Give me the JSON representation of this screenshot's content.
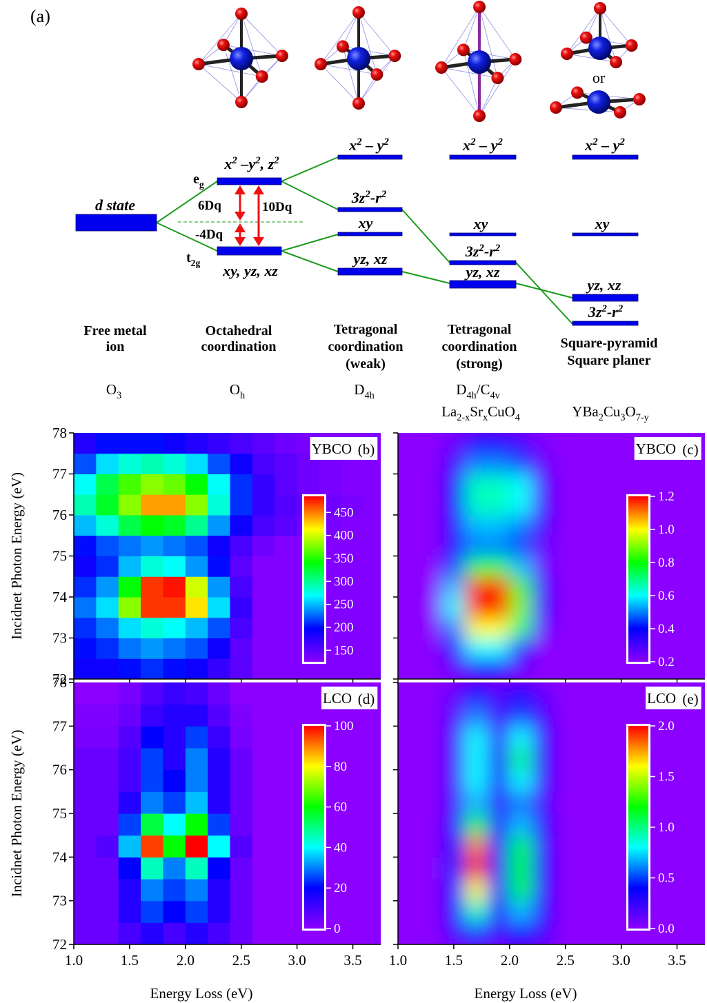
{
  "diagram": {
    "panel_label": "(a)",
    "d_state": "d state",
    "or": "or",
    "eg": [
      "e",
      "g"
    ],
    "t2g": [
      "t",
      "2g"
    ],
    "splitting": [
      "6Dq",
      "-4Dq",
      "10Dq"
    ],
    "octahedral_levels": [
      [
        "x",
        "2",
        " –y",
        "2",
        ", z",
        "2"
      ],
      [
        "xy, yz, xz"
      ]
    ],
    "weak_levels": [
      [
        "x",
        "2",
        " – y",
        "2"
      ],
      [
        "3z",
        "2",
        "-r",
        "2"
      ],
      [
        "xy"
      ],
      [
        "yz, xz"
      ]
    ],
    "strong_levels": [
      [
        "x",
        "2",
        " – y",
        "2"
      ],
      [
        "xy"
      ],
      [
        "3z",
        "2",
        "-r",
        "2"
      ],
      [
        "yz, xz"
      ]
    ],
    "square_levels": [
      [
        "x",
        "2",
        " – y",
        "2"
      ],
      [
        "xy"
      ],
      [
        "yz, xz"
      ],
      [
        "3z",
        "2",
        "-r",
        "2"
      ]
    ],
    "columns": [
      {
        "name": [
          "Free metal",
          "ion"
        ],
        "symmetry": [
          "O",
          "3"
        ]
      },
      {
        "name": [
          "Octahedral",
          "coordination"
        ],
        "symmetry": [
          "O",
          "h"
        ]
      },
      {
        "name": [
          "Tetragonal",
          "coordination",
          "(weak)"
        ],
        "symmetry": [
          "D",
          "4h"
        ]
      },
      {
        "name": [
          "Tetragonal",
          "coordination",
          "(strong)"
        ],
        "symmetry": [
          "D",
          "4h",
          "/C",
          "4v"
        ],
        "compound": [
          "La",
          "2-x",
          "Sr",
          "x",
          "CuO",
          "4"
        ]
      },
      {
        "name": [
          "Square-pyramid",
          "Square planer"
        ],
        "compound": [
          "YBa",
          "2",
          "Cu",
          "3",
          "O",
          "7-y"
        ]
      }
    ]
  },
  "chart_data": [
    {
      "type": "heatmap",
      "label": "YBCO",
      "panel": "(b)",
      "ylabel": "Incidnet Photon Energy (eV)",
      "x": [
        1.1,
        1.3,
        1.5,
        1.7,
        1.9,
        2.1,
        2.3,
        2.5,
        2.7,
        2.9,
        3.1,
        3.3,
        3.5,
        3.7
      ],
      "y": [
        72.25,
        72.75,
        73.25,
        73.75,
        74.25,
        74.75,
        75.25,
        75.75,
        76.25,
        76.75,
        77.25,
        77.75
      ],
      "z": [
        [
          190,
          190,
          200,
          210,
          200,
          190,
          170,
          150,
          130,
          130,
          130,
          130,
          130,
          130
        ],
        [
          200,
          210,
          230,
          240,
          230,
          220,
          190,
          150,
          130,
          130,
          130,
          130,
          130,
          130
        ],
        [
          210,
          230,
          260,
          280,
          270,
          250,
          220,
          160,
          130,
          130,
          130,
          130,
          130,
          130
        ],
        [
          230,
          260,
          380,
          470,
          470,
          420,
          260,
          170,
          130,
          130,
          130,
          130,
          130,
          130
        ],
        [
          210,
          240,
          340,
          470,
          480,
          400,
          240,
          160,
          130,
          130,
          130,
          130,
          130,
          130
        ],
        [
          190,
          210,
          250,
          280,
          270,
          240,
          200,
          150,
          130,
          130,
          130,
          130,
          130,
          130
        ],
        [
          200,
          220,
          230,
          240,
          230,
          220,
          190,
          160,
          140,
          130,
          130,
          130,
          130,
          130
        ],
        [
          250,
          280,
          320,
          340,
          330,
          300,
          240,
          190,
          160,
          150,
          140,
          135,
          130,
          130
        ],
        [
          290,
          330,
          380,
          440,
          440,
          380,
          280,
          210,
          170,
          155,
          145,
          140,
          135,
          130
        ],
        [
          270,
          320,
          360,
          380,
          370,
          340,
          270,
          210,
          170,
          150,
          140,
          135,
          130,
          130
        ],
        [
          220,
          260,
          280,
          290,
          280,
          260,
          220,
          190,
          160,
          150,
          140,
          135,
          130,
          130
        ],
        [
          180,
          200,
          200,
          200,
          190,
          180,
          170,
          160,
          150,
          140,
          135,
          130,
          130,
          130
        ]
      ],
      "xlim": [
        1,
        3.75
      ],
      "ylim": [
        72,
        78
      ],
      "xticks": [
        {
          "value": 1,
          "label": "1.0"
        },
        1.5,
        {
          "value": 2,
          "label": "2.0"
        },
        2.5,
        {
          "value": 3,
          "label": "3.0"
        },
        3.5
      ],
      "yticks": [
        72,
        73,
        74,
        75,
        76,
        77,
        78
      ],
      "zlim": [
        125,
        485
      ],
      "zticks": [
        150,
        200,
        250,
        300,
        350,
        400,
        450
      ],
      "colorscale": [
        "#8c00ff",
        "#0000ff",
        "#00ffff",
        "#00ff00",
        "#ffff00",
        "#ff0000"
      ],
      "show_xtick_labels": false,
      "show_ytick_labels": true,
      "smooth": false
    },
    {
      "type": "heatmap",
      "label": "YBCO",
      "panel": "(c)",
      "x": [
        1.1,
        1.3,
        1.5,
        1.7,
        1.9,
        2.1,
        2.3,
        2.5,
        2.7,
        2.9,
        3.1,
        3.3,
        3.5,
        3.7
      ],
      "y": [
        72.25,
        72.75,
        73.25,
        73.75,
        74.25,
        74.75,
        75.25,
        75.75,
        76.25,
        76.75,
        77.25,
        77.75
      ],
      "z": [
        [
          0.2,
          0.2,
          0.25,
          0.35,
          0.35,
          0.25,
          0.2,
          0.2,
          0.2,
          0.2,
          0.2,
          0.2,
          0.2,
          0.2
        ],
        [
          0.2,
          0.2,
          0.35,
          0.6,
          0.6,
          0.4,
          0.2,
          0.2,
          0.2,
          0.2,
          0.2,
          0.2,
          0.2,
          0.2
        ],
        [
          0.2,
          0.2,
          0.5,
          1.0,
          1.0,
          0.7,
          0.25,
          0.2,
          0.2,
          0.2,
          0.2,
          0.2,
          0.2,
          0.2
        ],
        [
          0.2,
          0.2,
          0.6,
          1.2,
          1.2,
          0.9,
          0.3,
          0.2,
          0.2,
          0.2,
          0.2,
          0.2,
          0.2,
          0.2
        ],
        [
          0.2,
          0.2,
          0.55,
          1.15,
          1.2,
          0.85,
          0.3,
          0.2,
          0.2,
          0.2,
          0.2,
          0.2,
          0.2,
          0.2
        ],
        [
          0.2,
          0.2,
          0.45,
          0.75,
          0.75,
          0.55,
          0.25,
          0.2,
          0.2,
          0.2,
          0.2,
          0.2,
          0.2,
          0.2
        ],
        [
          0.2,
          0.2,
          0.35,
          0.5,
          0.5,
          0.45,
          0.25,
          0.2,
          0.2,
          0.2,
          0.2,
          0.2,
          0.2,
          0.2
        ],
        [
          0.2,
          0.2,
          0.35,
          0.55,
          0.55,
          0.5,
          0.3,
          0.2,
          0.2,
          0.2,
          0.2,
          0.2,
          0.2,
          0.2
        ],
        [
          0.2,
          0.2,
          0.4,
          0.65,
          0.65,
          0.6,
          0.3,
          0.2,
          0.2,
          0.2,
          0.2,
          0.2,
          0.2,
          0.2
        ],
        [
          0.2,
          0.2,
          0.4,
          0.65,
          0.65,
          0.6,
          0.3,
          0.2,
          0.2,
          0.2,
          0.2,
          0.2,
          0.2,
          0.2
        ],
        [
          0.2,
          0.2,
          0.3,
          0.5,
          0.5,
          0.45,
          0.25,
          0.2,
          0.2,
          0.2,
          0.2,
          0.2,
          0.2,
          0.2
        ],
        [
          0.2,
          0.2,
          0.25,
          0.35,
          0.35,
          0.3,
          0.22,
          0.2,
          0.2,
          0.2,
          0.2,
          0.2,
          0.2,
          0.2
        ]
      ],
      "xlim": [
        1,
        3.75
      ],
      "ylim": [
        72,
        78
      ],
      "xticks": [
        {
          "value": 1,
          "label": "1.0"
        },
        1.5,
        {
          "value": 2,
          "label": "2.0"
        },
        2.5,
        {
          "value": 3,
          "label": "3.0"
        },
        3.5
      ],
      "yticks": [
        72,
        73,
        74,
        75,
        76,
        77,
        78
      ],
      "zlim": [
        0.2,
        1.2
      ],
      "zticks": [
        0.2,
        0.4,
        0.6,
        0.8,
        {
          "value": 1,
          "label": "1.0"
        },
        1.2
      ],
      "colorscale": [
        "#8c00ff",
        "#0000ff",
        "#00ffff",
        "#00ff00",
        "#ffff00",
        "#ff0000"
      ],
      "show_xtick_labels": false,
      "show_ytick_labels": false,
      "smooth": true
    },
    {
      "type": "heatmap",
      "label": "LCO",
      "panel": "(d)",
      "ylabel": "Incidnet Photon Energy (eV)",
      "xlabel": "Energy Loss (eV)",
      "x": [
        1.1,
        1.3,
        1.5,
        1.7,
        1.9,
        2.1,
        2.3,
        2.5,
        2.7,
        2.9,
        3.1,
        3.3,
        3.5,
        3.7
      ],
      "y": [
        72.25,
        72.75,
        73.25,
        73.75,
        74.25,
        74.75,
        75.25,
        75.75,
        76.25,
        76.75,
        77.25,
        77.75
      ],
      "z": [
        [
          5,
          5,
          10,
          15,
          10,
          15,
          10,
          5,
          0,
          0,
          0,
          0,
          0,
          0
        ],
        [
          5,
          5,
          15,
          25,
          20,
          25,
          15,
          5,
          0,
          0,
          0,
          0,
          0,
          0
        ],
        [
          5,
          5,
          15,
          30,
          25,
          30,
          15,
          5,
          0,
          0,
          0,
          0,
          0,
          0
        ],
        [
          5,
          5,
          20,
          45,
          30,
          45,
          20,
          5,
          0,
          0,
          0,
          0,
          0,
          0
        ],
        [
          5,
          8,
          35,
          95,
          60,
          100,
          40,
          8,
          0,
          0,
          0,
          0,
          0,
          0
        ],
        [
          5,
          5,
          25,
          55,
          40,
          60,
          25,
          5,
          0,
          0,
          0,
          0,
          0,
          0
        ],
        [
          5,
          5,
          15,
          30,
          25,
          35,
          15,
          5,
          0,
          0,
          0,
          0,
          0,
          0
        ],
        [
          5,
          5,
          10,
          25,
          20,
          30,
          15,
          5,
          0,
          0,
          0,
          0,
          0,
          0
        ],
        [
          5,
          5,
          10,
          25,
          15,
          30,
          15,
          5,
          0,
          0,
          0,
          0,
          0,
          0
        ],
        [
          3,
          3,
          8,
          20,
          15,
          25,
          12,
          3,
          0,
          0,
          0,
          0,
          0,
          0
        ],
        [
          2,
          2,
          5,
          12,
          15,
          15,
          8,
          2,
          0,
          0,
          0,
          0,
          0,
          0
        ],
        [
          0,
          0,
          3,
          8,
          12,
          10,
          5,
          0,
          0,
          0,
          0,
          0,
          0,
          0
        ]
      ],
      "xlim": [
        1,
        3.75
      ],
      "ylim": [
        72,
        78
      ],
      "xticks": [
        {
          "value": 1,
          "label": "1.0"
        },
        1.5,
        {
          "value": 2,
          "label": "2.0"
        },
        2.5,
        {
          "value": 3,
          "label": "3.0"
        },
        3.5
      ],
      "yticks": [
        72,
        73,
        74,
        75,
        76,
        77,
        78
      ],
      "zlim": [
        0,
        100
      ],
      "zticks": [
        0,
        20,
        40,
        60,
        80,
        100
      ],
      "colorscale": [
        "#8c00ff",
        "#0000ff",
        "#00ffff",
        "#00ff00",
        "#ffff00",
        "#ff0000"
      ],
      "show_xtick_labels": true,
      "show_ytick_labels": true,
      "smooth": false
    },
    {
      "type": "heatmap",
      "label": "LCO",
      "panel": "(e)",
      "xlabel": "Energy Loss (eV)",
      "x": [
        1.1,
        1.3,
        1.5,
        1.7,
        1.9,
        2.1,
        2.3,
        2.5,
        2.7,
        2.9,
        3.1,
        3.3,
        3.5,
        3.7
      ],
      "y": [
        72.25,
        72.75,
        73.25,
        73.75,
        74.25,
        74.75,
        75.25,
        75.75,
        76.25,
        76.75,
        77.25,
        77.75
      ],
      "z": [
        [
          0,
          0,
          0.2,
          0.5,
          0.2,
          0.4,
          0.2,
          0,
          0,
          0,
          0,
          0,
          0,
          0
        ],
        [
          0,
          0,
          0.3,
          0.9,
          0.3,
          0.7,
          0.3,
          0,
          0,
          0,
          0,
          0,
          0,
          0
        ],
        [
          0,
          0,
          0.4,
          1.6,
          0.4,
          1.1,
          0.3,
          0,
          0,
          0,
          0,
          0,
          0,
          0
        ],
        [
          0,
          0,
          0.45,
          2.0,
          0.45,
          1.2,
          0.35,
          0,
          0,
          0,
          0,
          0,
          0,
          0
        ],
        [
          0,
          0,
          0.4,
          1.8,
          0.4,
          1.1,
          0.3,
          0,
          0,
          0,
          0,
          0,
          0,
          0
        ],
        [
          0,
          0,
          0.3,
          1.1,
          0.3,
          0.7,
          0.3,
          0,
          0,
          0,
          0,
          0,
          0,
          0
        ],
        [
          0,
          0,
          0.2,
          0.7,
          0.25,
          0.6,
          0.2,
          0,
          0,
          0,
          0,
          0,
          0,
          0
        ],
        [
          0,
          0,
          0.2,
          0.8,
          0.3,
          0.8,
          0.25,
          0,
          0,
          0,
          0,
          0,
          0,
          0
        ],
        [
          0,
          0,
          0.2,
          0.8,
          0.3,
          1.0,
          0.3,
          0,
          0,
          0,
          0,
          0,
          0,
          0
        ],
        [
          0,
          0,
          0.2,
          0.8,
          0.25,
          0.8,
          0.25,
          0,
          0,
          0,
          0,
          0,
          0,
          0
        ],
        [
          0,
          0,
          0.15,
          0.6,
          0.2,
          0.5,
          0.2,
          0,
          0,
          0,
          0,
          0,
          0,
          0
        ],
        [
          0,
          0,
          0.1,
          0.35,
          0.15,
          0.3,
          0.1,
          0,
          0,
          0,
          0,
          0,
          0,
          0
        ]
      ],
      "xlim": [
        1,
        3.75
      ],
      "ylim": [
        72,
        78
      ],
      "xticks": [
        {
          "value": 1,
          "label": "1.0"
        },
        1.5,
        {
          "value": 2,
          "label": "2.0"
        },
        2.5,
        {
          "value": 3,
          "label": "3.0"
        },
        3.5
      ],
      "yticks": [
        72,
        73,
        74,
        75,
        76,
        77,
        78
      ],
      "zlim": [
        0,
        2
      ],
      "zticks": [
        {
          "value": 0,
          "label": "0.0"
        },
        0.5,
        {
          "value": 1,
          "label": "1.0"
        },
        1.5,
        {
          "value": 2,
          "label": "2.0"
        }
      ],
      "colorscale": [
        "#8c00ff",
        "#0000ff",
        "#00ffff",
        "#00ff00",
        "#ffff00",
        "#ff0000"
      ],
      "show_xtick_labels": true,
      "show_ytick_labels": false,
      "smooth": true
    }
  ]
}
